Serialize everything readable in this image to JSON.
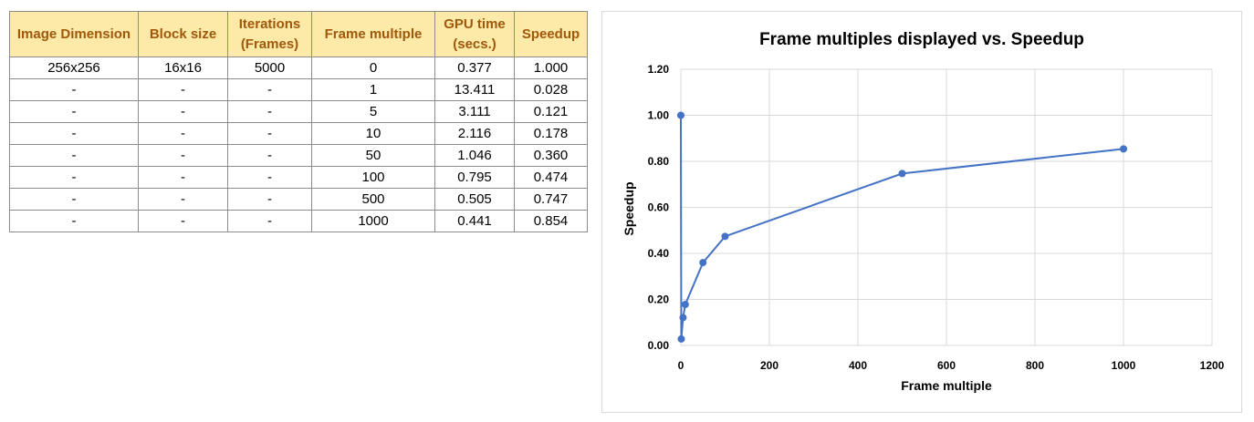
{
  "table": {
    "headers": [
      [
        "Image Dimension"
      ],
      [
        "Block size"
      ],
      [
        "Iterations",
        "(Frames)"
      ],
      [
        "Frame multiple"
      ],
      [
        "GPU time",
        "(secs.)"
      ],
      [
        "Speedup"
      ]
    ],
    "rows": [
      [
        "256x256",
        "16x16",
        "5000",
        "0",
        "0.377",
        "1.000"
      ],
      [
        "-",
        "-",
        "-",
        "1",
        "13.411",
        "0.028"
      ],
      [
        "-",
        "-",
        "-",
        "5",
        "3.111",
        "0.121"
      ],
      [
        "-",
        "-",
        "-",
        "10",
        "2.116",
        "0.178"
      ],
      [
        "-",
        "-",
        "-",
        "50",
        "1.046",
        "0.360"
      ],
      [
        "-",
        "-",
        "-",
        "100",
        "0.795",
        "0.474"
      ],
      [
        "-",
        "-",
        "-",
        "500",
        "0.505",
        "0.747"
      ],
      [
        "-",
        "-",
        "-",
        "1000",
        "0.441",
        "0.854"
      ]
    ]
  },
  "chart_data": {
    "type": "scatter",
    "title": "Frame multiples displayed vs. Speedup",
    "xlabel": "Frame multiple",
    "ylabel": "Speedup",
    "x": [
      0,
      1,
      5,
      10,
      50,
      100,
      500,
      1000
    ],
    "y": [
      1.0,
      0.028,
      0.121,
      0.178,
      0.36,
      0.474,
      0.747,
      0.854
    ],
    "xlim": [
      0,
      1200
    ],
    "ylim": [
      0,
      1.2
    ],
    "xticks": [
      "0",
      "200",
      "400",
      "600",
      "800",
      "1000",
      "1200"
    ],
    "yticks": [
      "0.00",
      "0.20",
      "0.40",
      "0.60",
      "0.80",
      "1.00",
      "1.20"
    ],
    "grid": true,
    "legend": "none",
    "line": true,
    "color": "#4472c4",
    "gridColor": "#d9d9d9"
  }
}
